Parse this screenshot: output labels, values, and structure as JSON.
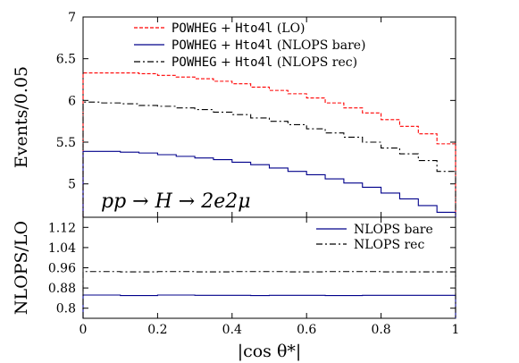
{
  "chart_data": [
    {
      "type": "line",
      "panel": "top",
      "ylabel": "Events/0.05",
      "xlim": [
        0,
        1
      ],
      "ylim": [
        4.6,
        7.0
      ],
      "yticks": [
        5,
        5.5,
        6,
        6.5,
        7
      ],
      "ytick_labels": [
        "5",
        "5.5",
        "6",
        "6.5",
        "7"
      ],
      "annotation": "pp → H → 2e2μ",
      "legend_position": "top-center",
      "bin_edges": [
        0,
        0.05,
        0.1,
        0.15,
        0.2,
        0.25,
        0.3,
        0.35,
        0.4,
        0.45,
        0.5,
        0.55,
        0.6,
        0.65,
        0.7,
        0.75,
        0.8,
        0.85,
        0.9,
        0.95,
        1.0
      ],
      "series": [
        {
          "name_parts": [
            [
              "POWHEG",
              "mono"
            ],
            [
              " + ",
              "serif"
            ],
            [
              "Hto4l",
              "mono"
            ],
            [
              " (LO)",
              "serif"
            ]
          ],
          "color": "#ff0000",
          "style": "dashed",
          "values": [
            6.33,
            6.33,
            6.33,
            6.32,
            6.3,
            6.28,
            6.26,
            6.23,
            6.2,
            6.16,
            6.12,
            6.08,
            6.03,
            5.97,
            5.91,
            5.85,
            5.77,
            5.69,
            5.6,
            5.48
          ]
        },
        {
          "name_parts": [
            [
              "POWHEG",
              "mono"
            ],
            [
              " + ",
              "serif"
            ],
            [
              "Hto4l",
              "mono"
            ],
            [
              " (NLOPS bare)",
              "serif"
            ]
          ],
          "color": "#00008b",
          "style": "solid",
          "values": [
            5.39,
            5.39,
            5.38,
            5.37,
            5.35,
            5.33,
            5.31,
            5.29,
            5.26,
            5.23,
            5.19,
            5.15,
            5.11,
            5.06,
            5.01,
            4.96,
            4.89,
            4.82,
            4.74,
            4.66
          ]
        },
        {
          "name_parts": [
            [
              "POWHEG",
              "mono"
            ],
            [
              " + ",
              "serif"
            ],
            [
              "Hto4l",
              "mono"
            ],
            [
              " (NLOPS rec)",
              "serif"
            ]
          ],
          "color": "#000000",
          "style": "dashdot",
          "values": [
            5.98,
            5.97,
            5.96,
            5.94,
            5.93,
            5.91,
            5.89,
            5.86,
            5.83,
            5.79,
            5.75,
            5.71,
            5.66,
            5.61,
            5.56,
            5.5,
            5.43,
            5.36,
            5.28,
            5.15
          ]
        }
      ]
    },
    {
      "type": "line",
      "panel": "bottom",
      "xlabel": "|cos θ*|",
      "ylabel": "NLOPS/LO",
      "xlim": [
        0,
        1
      ],
      "ylim": [
        0.76,
        1.16
      ],
      "xticks": [
        0,
        0.2,
        0.4,
        0.6,
        0.8,
        1
      ],
      "xtick_labels": [
        "0",
        "0.2",
        "0.4",
        "0.6",
        "0.8",
        "1"
      ],
      "yticks": [
        0.8,
        0.88,
        0.96,
        1.04,
        1.12
      ],
      "ytick_labels": [
        "0.8",
        "0.88",
        "0.96",
        "1.04",
        "1.12"
      ],
      "legend_position": "top-right",
      "bin_edges": [
        0,
        0.05,
        0.1,
        0.15,
        0.2,
        0.25,
        0.3,
        0.35,
        0.4,
        0.45,
        0.5,
        0.55,
        0.6,
        0.65,
        0.7,
        0.75,
        0.8,
        0.85,
        0.9,
        0.95,
        1.0
      ],
      "series": [
        {
          "name": "NLOPS bare",
          "color": "#00008b",
          "style": "solid",
          "values": [
            0.852,
            0.852,
            0.85,
            0.85,
            0.852,
            0.852,
            0.851,
            0.851,
            0.851,
            0.85,
            0.851,
            0.851,
            0.851,
            0.85,
            0.85,
            0.851,
            0.851,
            0.851,
            0.851,
            0.851
          ]
        },
        {
          "name": "NLOPS rec",
          "color": "#000000",
          "style": "dashdot",
          "values": [
            0.945,
            0.945,
            0.944,
            0.944,
            0.945,
            0.945,
            0.944,
            0.944,
            0.945,
            0.945,
            0.945,
            0.944,
            0.944,
            0.945,
            0.945,
            0.945,
            0.944,
            0.944,
            0.944,
            0.944
          ]
        }
      ]
    }
  ]
}
